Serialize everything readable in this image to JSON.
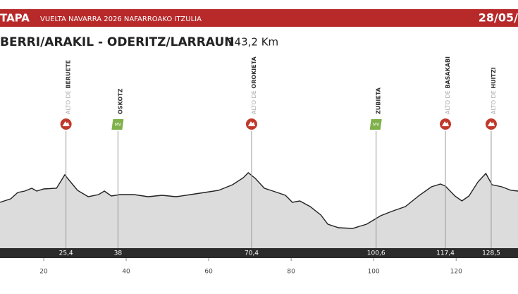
{
  "header": {
    "stage": "TAPA",
    "race": "VUELTA NAVARRA 2026 NAFARROAKO ITZULIA",
    "date": "28/05/"
  },
  "route": "BERRI/ARAKIL - ODERITZ/LARRAUN",
  "distance": "143,2 Km",
  "chart_data": {
    "type": "area",
    "color": "#dcdcdc",
    "line_color": "#222222",
    "x": [
      9.4,
      12.0,
      13.7,
      15.4,
      17.1,
      18.3,
      20.0,
      23.1,
      25.1,
      26.5,
      28.2,
      30.8,
      33.3,
      34.7,
      36.4,
      38.5,
      41.9,
      45.3,
      48.7,
      52.1,
      55.6,
      59.0,
      62.4,
      65.8,
      68.4,
      69.6,
      71.3,
      73.5,
      76.1,
      78.6,
      80.3,
      82.1,
      84.6,
      87.2,
      88.9,
      91.5,
      94.9,
      98.3,
      101.7,
      104.3,
      107.7,
      111.1,
      114.0,
      116.2,
      117.4,
      119.7,
      121.4,
      123.1,
      125.3,
      127.2,
      128.7,
      131.1,
      133.3,
      135.0
    ],
    "values": [
      325,
      350,
      395,
      405,
      425,
      405,
      420,
      425,
      520,
      470,
      410,
      365,
      380,
      405,
      370,
      380,
      380,
      365,
      375,
      365,
      380,
      395,
      410,
      450,
      500,
      535,
      495,
      425,
      400,
      375,
      325,
      335,
      295,
      235,
      170,
      145,
      140,
      170,
      230,
      260,
      295,
      375,
      435,
      455,
      440,
      370,
      335,
      370,
      470,
      530,
      450,
      435,
      410,
      405
    ],
    "xlim": [
      9.4,
      135.0
    ],
    "ylim": [
      0,
      1000
    ],
    "xticks": [
      20,
      40,
      60,
      80,
      100,
      120
    ],
    "markers": [
      {
        "km": {
          "value": 25.4,
          "label": "25,4"
        },
        "prefix": "ALTO DE",
        "name": "BERUETE",
        "icon": "climb"
      },
      {
        "km": 38,
        "name": "OSKOTZ",
        "icon": "sprint",
        "badge": "MV"
      },
      {
        "km": {
          "value": 70.4,
          "label": "70,4"
        },
        "prefix": "ALTO DE",
        "name": "OROKIETA",
        "icon": "climb"
      },
      {
        "km": {
          "value": 100.6,
          "label": "100,6"
        },
        "name": "ZUBIETA",
        "icon": "sprint",
        "badge": "MV"
      },
      {
        "km": {
          "value": 117.4,
          "label": "117,4"
        },
        "prefix": "ALTO DE",
        "name": "BASAKABI",
        "icon": "climb"
      },
      {
        "km": {
          "value": 128.5,
          "label": "128,5"
        },
        "prefix": "ALTO DE",
        "name": "HUITZI",
        "icon": "climb"
      }
    ]
  }
}
